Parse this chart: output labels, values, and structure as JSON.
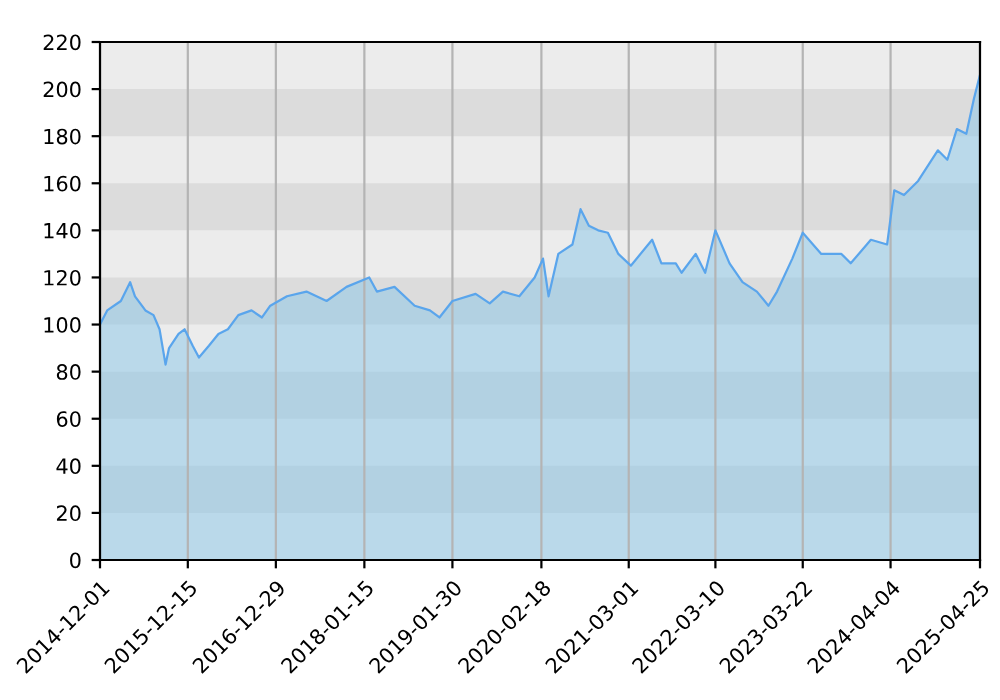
{
  "chart_data": {
    "type": "area",
    "x": [
      "2014-12-01",
      "2015-01-01",
      "2015-03-01",
      "2015-04-10",
      "2015-05-01",
      "2015-06-15",
      "2015-07-20",
      "2015-08-15",
      "2015-09-10",
      "2015-09-25",
      "2015-11-05",
      "2015-12-01",
      "2016-01-05",
      "2016-02-01",
      "2016-03-15",
      "2016-04-25",
      "2016-06-05",
      "2016-07-20",
      "2016-09-15",
      "2016-10-30",
      "2016-12-05",
      "2017-02-15",
      "2017-05-10",
      "2017-08-05",
      "2017-10-30",
      "2018-02-05",
      "2018-03-10",
      "2018-05-25",
      "2018-08-20",
      "2018-10-25",
      "2018-12-05",
      "2019-01-30",
      "2019-05-10",
      "2019-07-10",
      "2019-09-05",
      "2019-11-15",
      "2020-01-20",
      "2020-02-25",
      "2020-03-20",
      "2020-05-01",
      "2020-07-01",
      "2020-08-05",
      "2020-09-10",
      "2020-10-20",
      "2020-12-01",
      "2021-01-15",
      "2021-03-10",
      "2021-06-10",
      "2021-07-20",
      "2021-09-20",
      "2021-10-15",
      "2021-12-15",
      "2022-01-25",
      "2022-03-10",
      "2022-05-10",
      "2022-07-05",
      "2022-09-05",
      "2022-10-25",
      "2022-12-01",
      "2023-02-05",
      "2023-03-22",
      "2023-06-10",
      "2023-09-05",
      "2023-10-15",
      "2024-01-10",
      "2024-03-20",
      "2024-04-01",
      "2024-04-20",
      "2024-06-01",
      "2024-08-01",
      "2024-10-25",
      "2024-12-05",
      "2025-01-15",
      "2025-02-25",
      "2025-03-30",
      "2025-04-25"
    ],
    "series": [
      {
        "color": "#5aa5ec",
        "values": [
          100,
          106,
          110,
          118,
          112,
          106,
          104,
          98,
          83,
          90,
          96,
          98,
          91,
          86,
          91,
          96,
          98,
          104,
          106,
          103,
          108,
          112,
          114,
          110,
          116,
          120,
          114,
          116,
          108,
          106,
          103,
          110,
          113,
          109,
          114,
          112,
          120,
          128,
          112,
          130,
          134,
          149,
          142,
          140,
          139,
          130,
          125,
          136,
          126,
          126,
          122,
          130,
          122,
          140,
          126,
          118,
          114,
          108,
          114,
          128,
          139,
          130,
          130,
          126,
          136,
          134,
          143,
          157,
          155,
          161,
          174,
          170,
          183,
          181,
          196,
          206
        ]
      }
    ],
    "xlim": [
      "2014-12-01",
      "2025-04-25"
    ],
    "xticks": [
      "2014-12-01",
      "2015-12-15",
      "2016-12-29",
      "2018-01-15",
      "2019-01-30",
      "2020-02-18",
      "2021-03-01",
      "2022-03-10",
      "2023-03-22",
      "2024-04-04",
      "2025-04-25"
    ],
    "ylim": [
      0,
      220
    ],
    "yticks": [
      0,
      20,
      40,
      60,
      80,
      100,
      120,
      140,
      160,
      180,
      200,
      220
    ],
    "grid": "x",
    "bands": [
      {
        "axis": "y",
        "from": 20,
        "to": 40,
        "color": "#dcdcdc"
      },
      {
        "axis": "y",
        "from": 60,
        "to": 80,
        "color": "#dcdcdc"
      },
      {
        "axis": "y",
        "from": 100,
        "to": 120,
        "color": "#dcdcdc"
      },
      {
        "axis": "y",
        "from": 140,
        "to": 160,
        "color": "#dcdcdc"
      },
      {
        "axis": "y",
        "from": 180,
        "to": 200,
        "color": "#dcdcdc"
      }
    ]
  }
}
